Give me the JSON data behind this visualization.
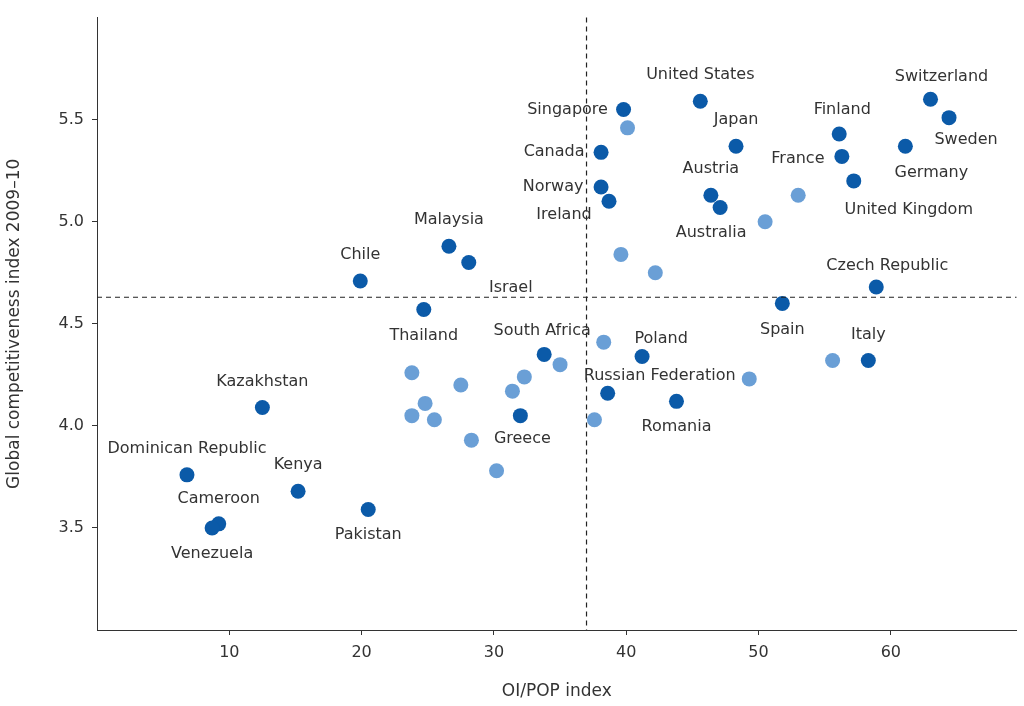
{
  "chart_data": {
    "type": "scatter",
    "xlabel": "OI/POP index",
    "ylabel": "Global competitiveness index 2009–10",
    "xlim": [
      0,
      69.5
    ],
    "xticks": [
      10,
      20,
      30,
      40,
      50,
      60
    ],
    "ylim": [
      3.0,
      6.0
    ],
    "yticks": [
      3.5,
      {
        "value": 4,
        "label": "4.0"
      },
      4.5,
      {
        "value": 5,
        "label": "5.0"
      },
      5.5
    ],
    "grid": false,
    "legend": false,
    "marker": "circle",
    "series": [
      {
        "color": "#0b5aa8",
        "x": [
          63.0,
          64.4,
          45.6,
          39.8,
          48.3,
          56.1,
          56.3,
          61.1,
          57.2,
          38.1,
          38.1,
          38.7,
          46.4,
          47.1,
          26.6,
          19.9,
          28.1,
          24.7,
          58.9,
          51.8,
          58.3,
          41.2,
          33.8,
          38.6,
          43.8,
          32.0,
          12.5,
          6.8,
          15.2,
          20.5,
          9.2,
          8.7
        ],
        "values": [
          5.6,
          5.51,
          5.59,
          5.55,
          5.37,
          5.43,
          5.32,
          5.37,
          5.2,
          5.34,
          5.17,
          5.1,
          5.13,
          5.07,
          4.88,
          4.71,
          4.8,
          4.57,
          4.68,
          4.6,
          4.32,
          4.34,
          4.35,
          4.16,
          4.12,
          4.05,
          4.09,
          3.76,
          3.68,
          3.59,
          3.52,
          3.5
        ]
      },
      {
        "color": "#6a9fd6",
        "x": [
          40.1,
          50.5,
          53.0,
          39.6,
          42.2,
          38.3,
          23.8,
          27.5,
          32.3,
          31.4,
          35.0,
          23.8,
          24.8,
          25.5,
          28.3,
          30.2,
          37.6,
          49.3,
          55.6
        ],
        "values": [
          5.46,
          5.0,
          5.13,
          4.84,
          4.75,
          4.41,
          4.26,
          4.2,
          4.24,
          4.17,
          4.3,
          4.05,
          4.11,
          4.03,
          3.93,
          3.78,
          4.03,
          4.23,
          4.32
        ]
      }
    ],
    "ref_lines": [
      {
        "axis": "x",
        "value": 37.0,
        "line_style": "dashed",
        "color": "#222222"
      },
      {
        "axis": "y",
        "value": 4.63,
        "line_style": "dashed",
        "color": "#222222"
      }
    ],
    "annotations": [
      {
        "text": "Switzerland",
        "x": 63.0,
        "y": 5.6
      },
      {
        "text": "Sweden",
        "x": 64.4,
        "y": 5.51
      },
      {
        "text": "United States",
        "x": 45.6,
        "y": 5.59
      },
      {
        "text": "Singapore",
        "x": 39.8,
        "y": 5.55
      },
      {
        "text": "Japan",
        "x": 48.3,
        "y": 5.37
      },
      {
        "text": "Finland",
        "x": 56.1,
        "y": 5.43
      },
      {
        "text": "France",
        "x": 56.3,
        "y": 5.32
      },
      {
        "text": "Germany",
        "x": 61.1,
        "y": 5.37
      },
      {
        "text": "United Kingdom",
        "x": 57.2,
        "y": 5.2
      },
      {
        "text": "Canada",
        "x": 38.1,
        "y": 5.34
      },
      {
        "text": "Norway",
        "x": 38.1,
        "y": 5.17
      },
      {
        "text": "Ireland",
        "x": 38.7,
        "y": 5.1
      },
      {
        "text": "Austria",
        "x": 46.4,
        "y": 5.13
      },
      {
        "text": "Australia",
        "x": 47.1,
        "y": 5.07
      },
      {
        "text": "Malaysia",
        "x": 26.6,
        "y": 4.88
      },
      {
        "text": "Chile",
        "x": 19.9,
        "y": 4.71
      },
      {
        "text": "Israel",
        "x": 28.1,
        "y": 4.8
      },
      {
        "text": "Thailand",
        "x": 24.7,
        "y": 4.57
      },
      {
        "text": "Czech Republic",
        "x": 58.9,
        "y": 4.68
      },
      {
        "text": "Spain",
        "x": 51.8,
        "y": 4.6
      },
      {
        "text": "Italy",
        "x": 58.3,
        "y": 4.32
      },
      {
        "text": "Poland",
        "x": 41.2,
        "y": 4.34
      },
      {
        "text": "South Africa",
        "x": 33.8,
        "y": 4.35
      },
      {
        "text": "Russian Federation",
        "x": 38.6,
        "y": 4.16
      },
      {
        "text": "Romania",
        "x": 43.8,
        "y": 4.12
      },
      {
        "text": "Greece",
        "x": 32.0,
        "y": 4.05
      },
      {
        "text": "Kazakhstan",
        "x": 12.5,
        "y": 4.09
      },
      {
        "text": "Dominican Republic",
        "x": 6.8,
        "y": 3.76
      },
      {
        "text": "Kenya",
        "x": 15.2,
        "y": 3.68
      },
      {
        "text": "Pakistan",
        "x": 20.5,
        "y": 3.59
      },
      {
        "text": "Cameroon",
        "x": 9.2,
        "y": 3.52
      },
      {
        "text": "Venezuela",
        "x": 8.7,
        "y": 3.5
      }
    ]
  }
}
